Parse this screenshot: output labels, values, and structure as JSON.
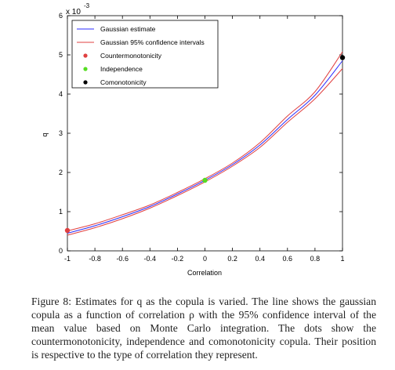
{
  "figure": {
    "caption": "Figure 8: Estimates for q as the copula is varied. The line shows the gaussian copula as a function of correlation ρ with the 95% confidence interval of the mean value based on Monte Carlo integration. The dots show the countermonotonicity, independence and comonotonicity copula. Their position is respective to the type of correlation they represent."
  },
  "chart_data": {
    "type": "line",
    "title": "",
    "xlabel": "Correlation",
    "ylabel": "q",
    "y_exponent": "x 10",
    "y_exponent_power": "-3",
    "xlim": [
      -1,
      1
    ],
    "ylim": [
      0,
      6
    ],
    "xticks": [
      -1,
      -0.8,
      -0.6,
      -0.4,
      -0.2,
      0,
      0.2,
      0.4,
      0.6,
      0.8,
      1
    ],
    "xtick_labels": [
      "-1",
      "-0.8",
      "-0.6",
      "-0.4",
      "-0.2",
      "0",
      "0.2",
      "0.4",
      "0.6",
      "0.8",
      "1"
    ],
    "yticks": [
      0,
      1,
      2,
      3,
      4,
      5,
      6
    ],
    "ytick_labels": [
      "0",
      "1",
      "2",
      "3",
      "4",
      "5",
      "6"
    ],
    "grid": false,
    "legend_position": "top-left",
    "x": [
      -1,
      -0.8,
      -0.6,
      -0.4,
      -0.2,
      0,
      0.2,
      0.4,
      0.6,
      0.8,
      1
    ],
    "series": [
      {
        "name": "Gaussian estimate",
        "color": "#2b2bff",
        "style": "line",
        "values": [
          0.45,
          0.64,
          0.87,
          1.13,
          1.45,
          1.8,
          2.2,
          2.7,
          3.35,
          3.97,
          4.85
        ]
      },
      {
        "name": "Gaussian 95% confidence intervals",
        "color": "#e04040",
        "style": "line",
        "values": [
          0.51,
          0.69,
          0.92,
          1.17,
          1.49,
          1.84,
          2.24,
          2.76,
          3.44,
          4.06,
          5.08
        ]
      },
      {
        "name": "",
        "color": "#e04040",
        "style": "line",
        "values": [
          0.4,
          0.59,
          0.82,
          1.09,
          1.41,
          1.76,
          2.16,
          2.64,
          3.28,
          3.88,
          4.65
        ]
      }
    ],
    "points": [
      {
        "name": "Countermonotonicity",
        "x": -1,
        "y": 0.52,
        "color": "#e04040"
      },
      {
        "name": "Independence",
        "x": 0,
        "y": 1.8,
        "color": "#55dd22"
      },
      {
        "name": "Comonotonicity",
        "x": 1,
        "y": 4.93,
        "color": "#000000"
      }
    ]
  }
}
